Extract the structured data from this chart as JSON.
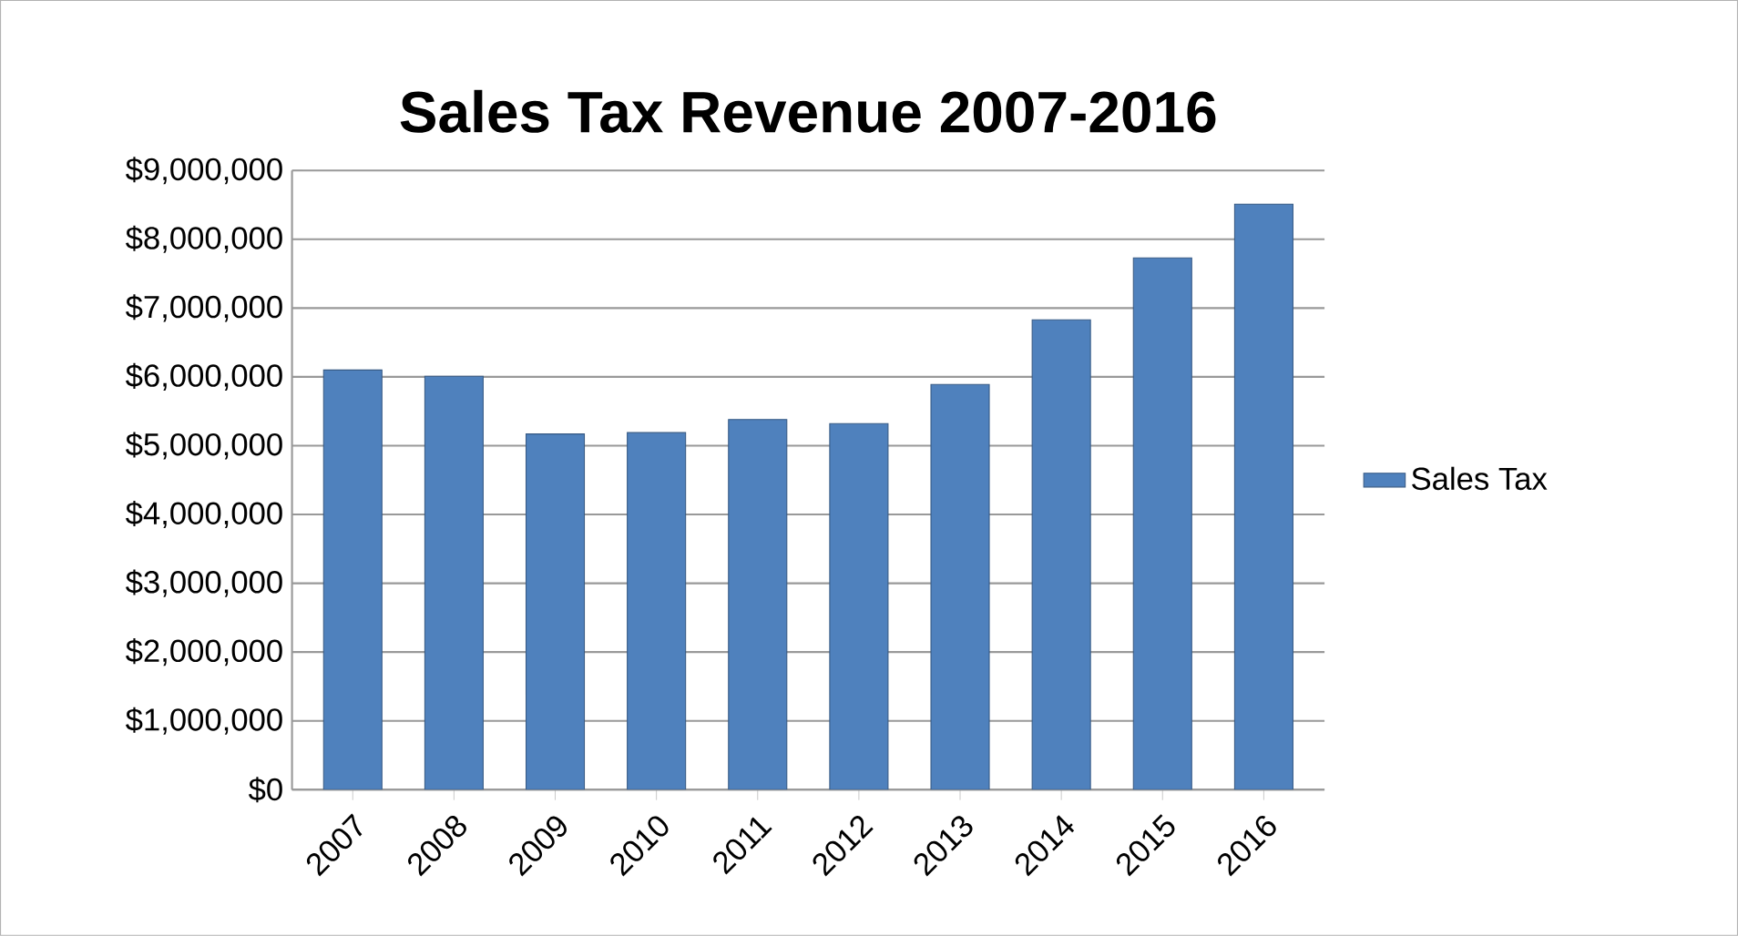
{
  "chart_data": {
    "type": "bar",
    "title": "Sales Tax Revenue 2007-2016",
    "categories": [
      "2007",
      "2008",
      "2009",
      "2010",
      "2011",
      "2012",
      "2013",
      "2014",
      "2015",
      "2016"
    ],
    "series": [
      {
        "name": "Sales Tax",
        "color": "#4f81bd",
        "values": [
          6100000,
          6010000,
          5170000,
          5190000,
          5380000,
          5320000,
          5890000,
          6830000,
          7730000,
          8510000
        ]
      }
    ],
    "ylim": [
      0,
      9000000
    ],
    "yticks": [
      {
        "value": 0,
        "label": "$0"
      },
      {
        "value": 1000000,
        "label": "$1,000,000"
      },
      {
        "value": 2000000,
        "label": "$2,000,000"
      },
      {
        "value": 3000000,
        "label": "$3,000,000"
      },
      {
        "value": 4000000,
        "label": "$4,000,000"
      },
      {
        "value": 5000000,
        "label": "$5,000,000"
      },
      {
        "value": 6000000,
        "label": "$6,000,000"
      },
      {
        "value": 7000000,
        "label": "$7,000,000"
      },
      {
        "value": 8000000,
        "label": "$8,000,000"
      },
      {
        "value": 9000000,
        "label": "$9,000,000"
      }
    ],
    "grid": "y",
    "legend": "right"
  }
}
